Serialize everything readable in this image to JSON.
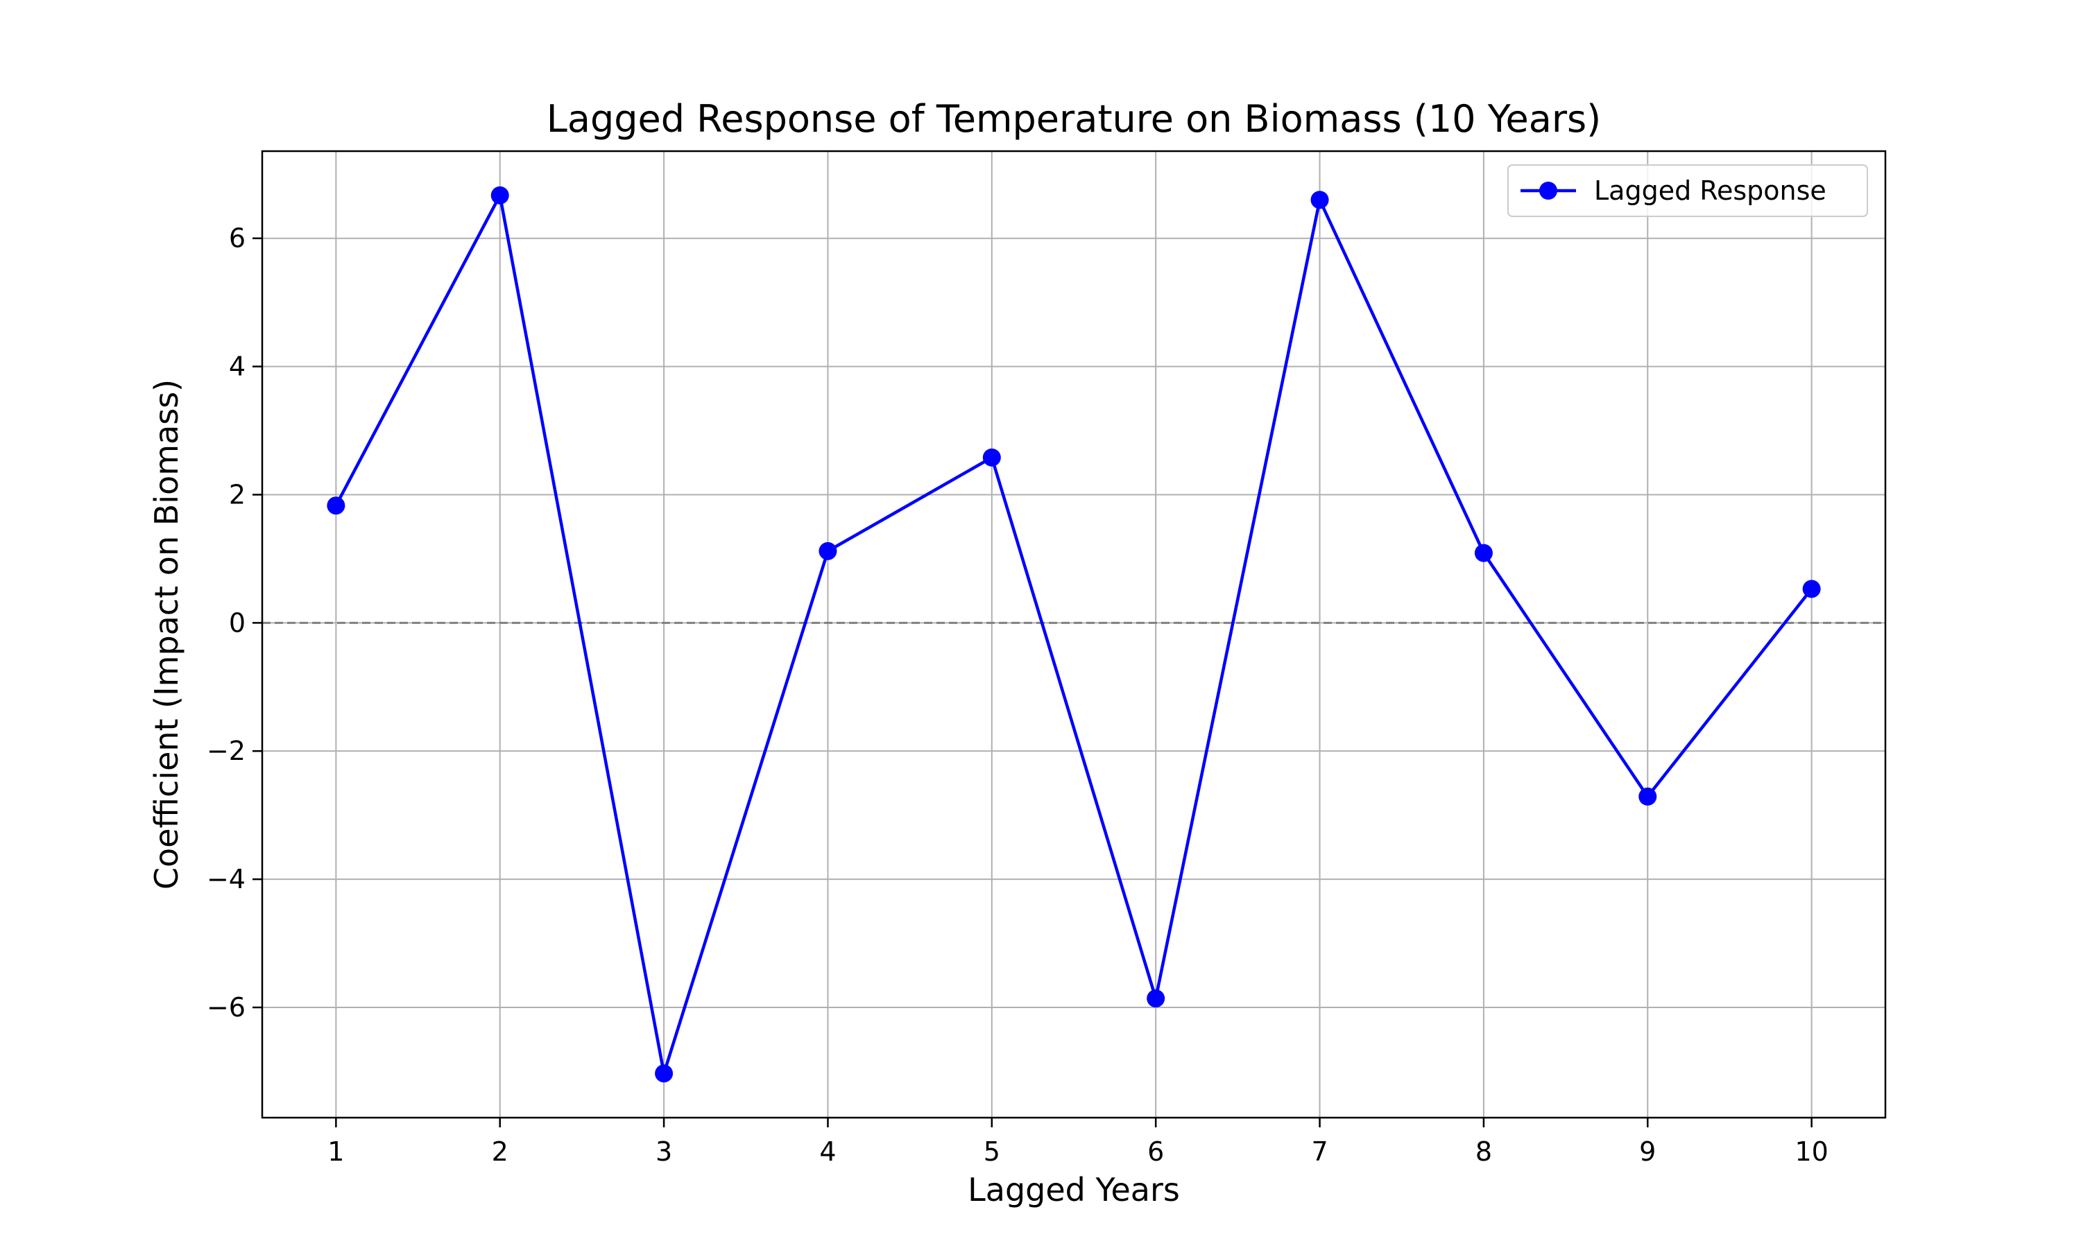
{
  "chart_data": {
    "type": "line",
    "title": "Lagged Response of Temperature on Biomass (10 Years)",
    "xlabel": "Lagged Years",
    "ylabel": "Coefficient (Impact on Biomass)",
    "x": [
      1,
      2,
      3,
      4,
      5,
      6,
      7,
      8,
      9,
      10
    ],
    "series": [
      {
        "name": "Lagged Response",
        "values": [
          1.83,
          6.67,
          -7.03,
          1.12,
          2.58,
          -5.86,
          6.6,
          1.09,
          -2.71,
          0.53
        ],
        "color": "#0000ff",
        "marker": "circle"
      }
    ],
    "xlim": [
      0.55,
      10.45
    ],
    "ylim": [
      -7.72,
      7.36
    ],
    "xticks": [
      1,
      2,
      3,
      4,
      5,
      6,
      7,
      8,
      9,
      10
    ],
    "xtick_labels": [
      "1",
      "2",
      "3",
      "4",
      "5",
      "6",
      "7",
      "8",
      "9",
      "10"
    ],
    "yticks": [
      -6,
      -4,
      -2,
      0,
      2,
      4,
      6
    ],
    "ytick_labels": [
      "−6",
      "−4",
      "−2",
      "0",
      "2",
      "4",
      "6"
    ],
    "reference_line": {
      "y": 0,
      "style": "dashed",
      "color": "#808080"
    },
    "grid": true,
    "legend": {
      "position": "top-right"
    }
  }
}
